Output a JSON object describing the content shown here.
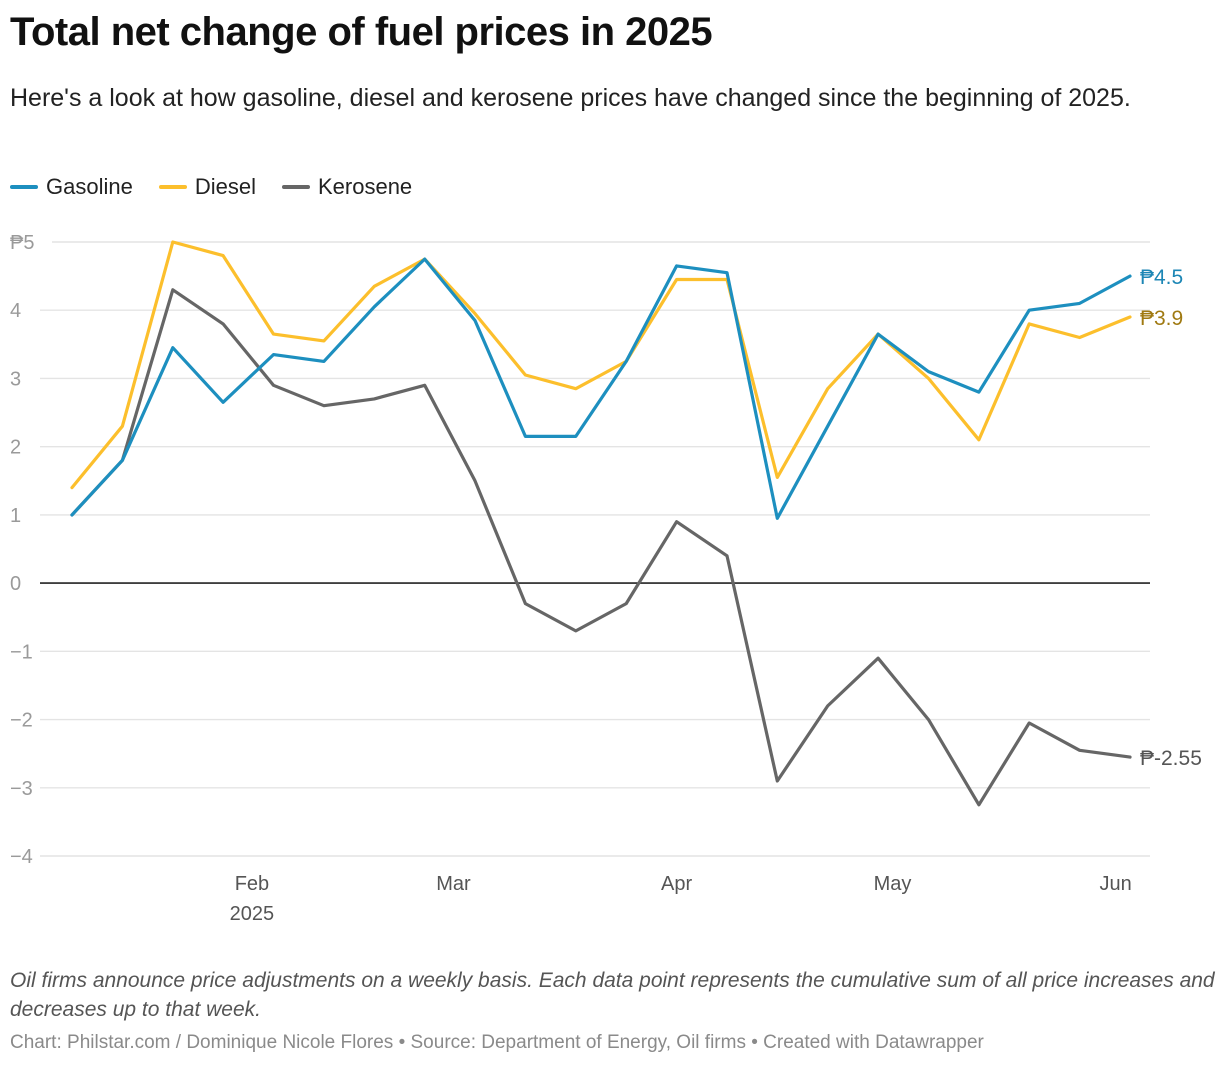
{
  "header": {
    "title": "Total net change of fuel prices in 2025",
    "subtitle": "Here's a look at how gasoline, diesel and kerosene prices have changed since the beginning of 2025."
  },
  "footer": {
    "note": "Oil firms announce price adjustments on a weekly basis. Each data point represents the cumulative sum of all price increases and decreases up to that week.",
    "credits": "Chart: Philstar.com / Dominique Nicole Flores • Source: Department of Energy, Oil firms • Created with Datawrapper"
  },
  "chart_data": {
    "type": "line",
    "title": "Total net change of fuel prices in 2025",
    "subtitle": "Here's a look at how gasoline, diesel and kerosene prices have changed since the beginning of 2025.",
    "x": [
      "2025-01-07",
      "2025-01-14",
      "2025-01-21",
      "2025-01-28",
      "2025-02-04",
      "2025-02-11",
      "2025-02-18",
      "2025-02-25",
      "2025-03-04",
      "2025-03-11",
      "2025-03-18",
      "2025-03-25",
      "2025-04-01",
      "2025-04-08",
      "2025-04-15",
      "2025-04-22",
      "2025-04-29",
      "2025-05-06",
      "2025-05-13",
      "2025-05-20",
      "2025-05-27",
      "2025-06-03"
    ],
    "x_ticks": [
      {
        "date": "2025-02-01",
        "label": "Feb",
        "sublabel": "2025"
      },
      {
        "date": "2025-03-01",
        "label": "Mar"
      },
      {
        "date": "2025-04-01",
        "label": "Apr"
      },
      {
        "date": "2025-05-01",
        "label": "May"
      },
      {
        "date": "2025-06-01",
        "label": "Jun"
      }
    ],
    "y_ticks": [
      {
        "value": 5,
        "label": "₱5"
      },
      {
        "value": 4,
        "label": "4"
      },
      {
        "value": 3,
        "label": "3"
      },
      {
        "value": 2,
        "label": "2"
      },
      {
        "value": 1,
        "label": "1"
      },
      {
        "value": 0,
        "label": "0"
      },
      {
        "value": -1,
        "label": "−1"
      },
      {
        "value": -2,
        "label": "−2"
      },
      {
        "value": -3,
        "label": "−3"
      },
      {
        "value": -4,
        "label": "−4"
      }
    ],
    "ylim": [
      -4,
      5
    ],
    "grid": true,
    "legend_position": "top-left",
    "series": [
      {
        "name": "Gasoline",
        "color": "#1d8fbf",
        "end_label": "₱4.5",
        "end_label_color": "#1c86b5",
        "values": [
          1.0,
          1.8,
          3.45,
          2.65,
          3.35,
          3.25,
          4.05,
          4.75,
          3.85,
          2.15,
          2.15,
          3.25,
          4.65,
          4.55,
          0.95,
          2.3,
          3.65,
          3.1,
          2.8,
          4.0,
          4.1,
          4.5
        ]
      },
      {
        "name": "Diesel",
        "color": "#fcbf2c",
        "end_label": "₱3.9",
        "end_label_color": "#a07a12",
        "values": [
          1.4,
          2.3,
          5.0,
          4.8,
          3.65,
          3.55,
          4.35,
          4.75,
          3.95,
          3.05,
          2.85,
          3.25,
          4.45,
          4.45,
          1.55,
          2.85,
          3.65,
          3.0,
          2.1,
          3.8,
          3.6,
          3.9
        ]
      },
      {
        "name": "Kerosene",
        "color": "#666666",
        "end_label": "₱-2.55",
        "end_label_color": "#555555",
        "values": [
          1.0,
          1.8,
          4.3,
          3.8,
          2.9,
          2.6,
          2.7,
          2.9,
          1.5,
          -0.3,
          -0.7,
          -0.3,
          0.9,
          0.4,
          -2.9,
          -1.8,
          -1.1,
          -2.0,
          -3.25,
          -2.05,
          -2.45,
          -2.55
        ]
      }
    ]
  }
}
